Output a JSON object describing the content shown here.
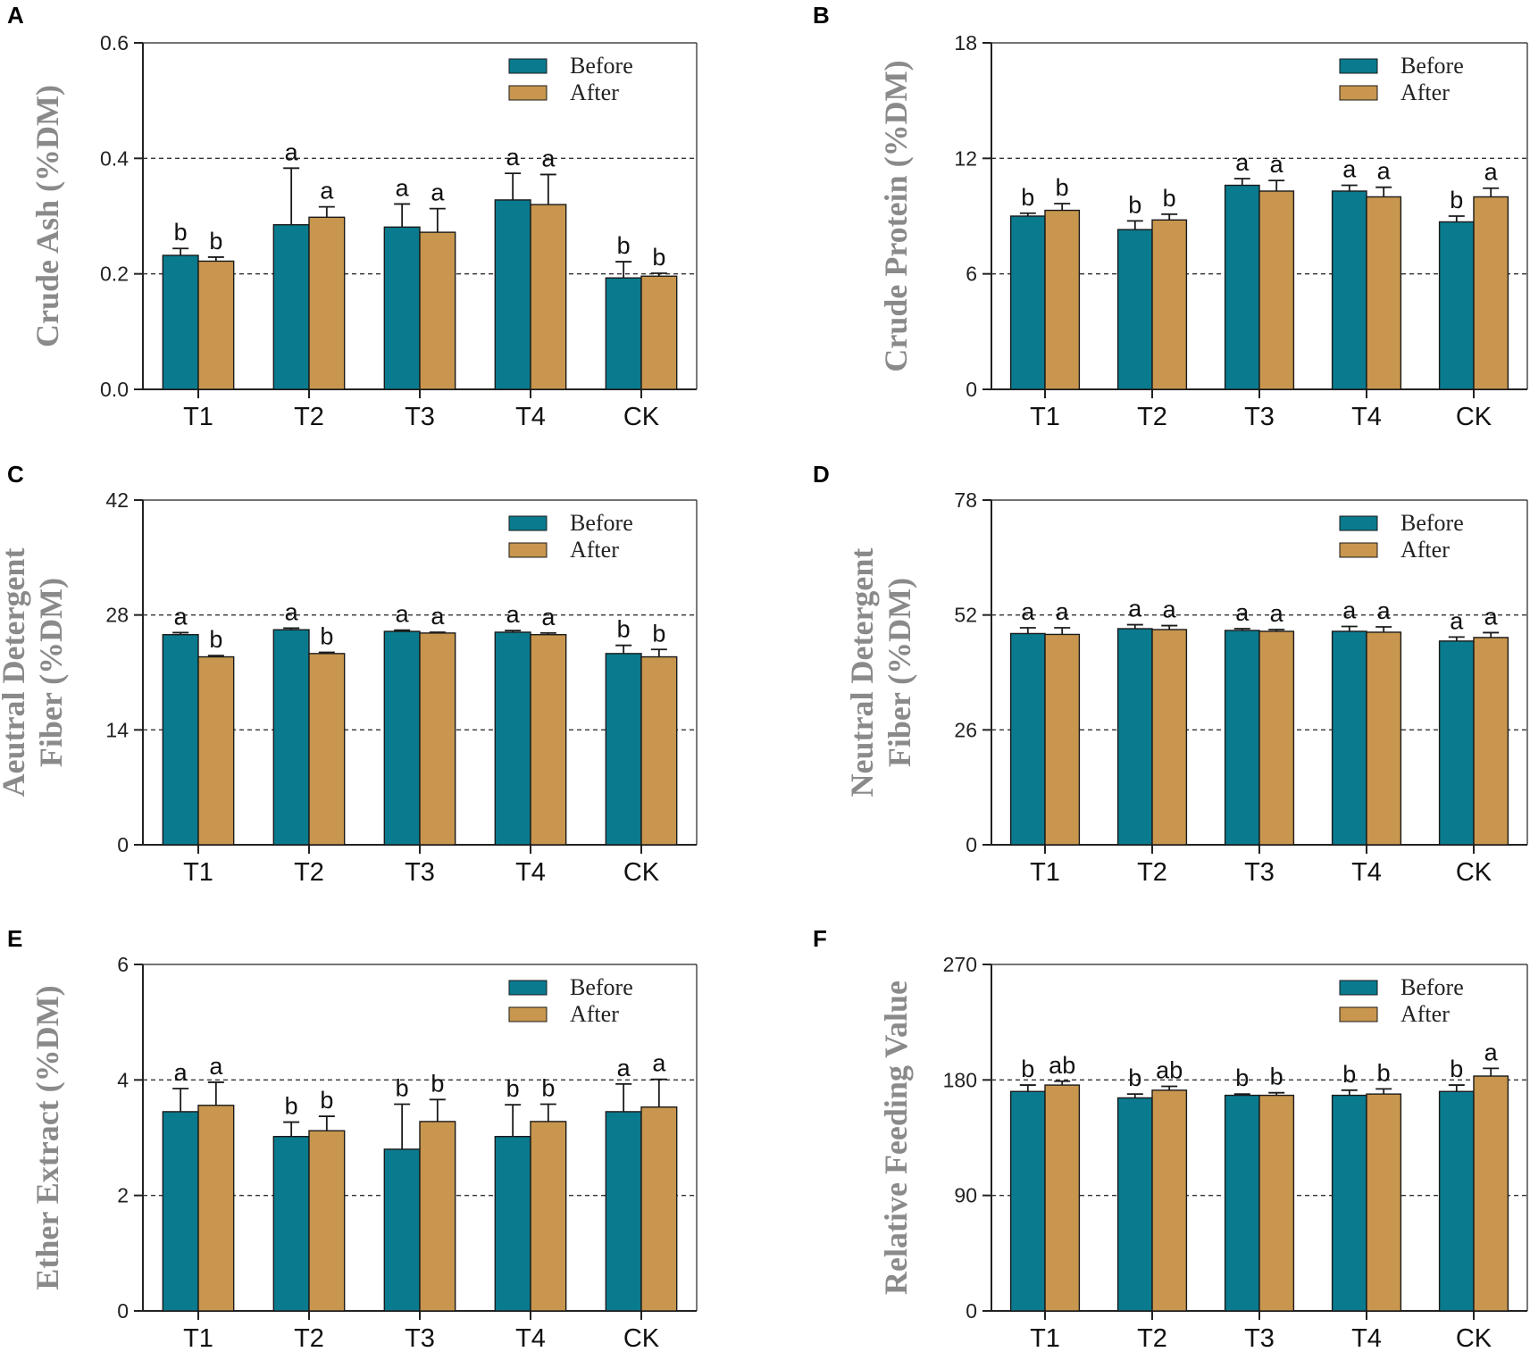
{
  "colors": {
    "before": "#0a7a8e",
    "after": "#c8964e",
    "axis": "#222222",
    "label": "#8a8a8a"
  },
  "legend": {
    "before": "Before",
    "after": "After"
  },
  "chart_data": [
    {
      "panel": "A",
      "type": "bar",
      "ylabel": "Crude Ash (%DM)",
      "ylabel_lines": [
        "Crude Ash (%DM)"
      ],
      "ylim": [
        0,
        0.6
      ],
      "yticks": [
        "0.0",
        "0.2",
        "0.4",
        "0.6"
      ],
      "ytick_values": [
        0,
        0.2,
        0.4,
        0.6
      ],
      "ref_lines": [
        0.2,
        0.4
      ],
      "categories": [
        "T1",
        "T2",
        "T3",
        "T4",
        "CK"
      ],
      "series": [
        {
          "name": "Before",
          "values": [
            0.232,
            0.285,
            0.281,
            0.328,
            0.193
          ],
          "errors": [
            0.012,
            0.098,
            0.04,
            0.046,
            0.028
          ],
          "labels": [
            "b",
            "a",
            "a",
            "a",
            "b"
          ]
        },
        {
          "name": "After",
          "values": [
            0.222,
            0.298,
            0.272,
            0.32,
            0.196
          ],
          "errors": [
            0.007,
            0.018,
            0.041,
            0.052,
            0.005
          ],
          "labels": [
            "b",
            "a",
            "a",
            "a",
            "b"
          ]
        }
      ]
    },
    {
      "panel": "B",
      "type": "bar",
      "ylabel": "Crude Protein (%DM)",
      "ylabel_lines": [
        "Crude Protein (%DM)"
      ],
      "ylim": [
        0,
        18
      ],
      "yticks": [
        "0",
        "6",
        "12",
        "18"
      ],
      "ytick_values": [
        0,
        6,
        12,
        18
      ],
      "ref_lines": [
        6,
        12
      ],
      "categories": [
        "T1",
        "T2",
        "T3",
        "T4",
        "CK"
      ],
      "series": [
        {
          "name": "Before",
          "values": [
            9.0,
            8.3,
            10.6,
            10.3,
            8.7
          ],
          "errors": [
            0.15,
            0.45,
            0.35,
            0.3,
            0.3
          ],
          "labels": [
            "b",
            "b",
            "a",
            "a",
            "b"
          ]
        },
        {
          "name": "After",
          "values": [
            9.3,
            8.8,
            10.3,
            10.0,
            10.0
          ],
          "errors": [
            0.35,
            0.3,
            0.55,
            0.5,
            0.45
          ],
          "labels": [
            "b",
            "b",
            "a",
            "a",
            "a"
          ]
        }
      ]
    },
    {
      "panel": "C",
      "type": "bar",
      "ylabel": "Aeutral Detergent Fiber (%DM)",
      "ylabel_lines": [
        "Aeutral Detergent",
        "Fiber (%DM)"
      ],
      "ylim": [
        0,
        42
      ],
      "yticks": [
        "0",
        "14",
        "28",
        "42"
      ],
      "ytick_values": [
        0,
        14,
        28,
        42
      ],
      "ref_lines": [
        14,
        28
      ],
      "categories": [
        "T1",
        "T2",
        "T3",
        "T4",
        "CK"
      ],
      "series": [
        {
          "name": "Before",
          "values": [
            25.6,
            26.2,
            26.0,
            25.9,
            23.3
          ],
          "errors": [
            0.25,
            0.2,
            0.15,
            0.2,
            1.0
          ],
          "labels": [
            "a",
            "a",
            "a",
            "a",
            "b"
          ]
        },
        {
          "name": "After",
          "values": [
            22.9,
            23.3,
            25.8,
            25.6,
            22.9
          ],
          "errors": [
            0.15,
            0.15,
            0.1,
            0.2,
            0.9
          ],
          "labels": [
            "b",
            "b",
            "a",
            "a",
            "b"
          ]
        }
      ]
    },
    {
      "panel": "D",
      "type": "bar",
      "ylabel": "Neutral Detergent Fiber (%DM)",
      "ylabel_lines": [
        "Neutral Detergent",
        "Fiber (%DM)"
      ],
      "ylim": [
        0,
        78
      ],
      "yticks": [
        "0",
        "26",
        "52",
        "78"
      ],
      "ytick_values": [
        0,
        26,
        52,
        78
      ],
      "ref_lines": [
        26,
        52
      ],
      "categories": [
        "T1",
        "T2",
        "T3",
        "T4",
        "CK"
      ],
      "series": [
        {
          "name": "Before",
          "values": [
            47.8,
            48.9,
            48.5,
            48.3,
            46.1
          ],
          "errors": [
            1.3,
            0.9,
            0.4,
            1.1,
            0.9
          ],
          "labels": [
            "a",
            "a",
            "a",
            "a",
            "a"
          ]
        },
        {
          "name": "After",
          "values": [
            47.6,
            48.7,
            48.3,
            48.1,
            46.9
          ],
          "errors": [
            1.5,
            0.9,
            0.4,
            1.2,
            1.1
          ],
          "labels": [
            "a",
            "a",
            "a",
            "a",
            "a"
          ]
        }
      ]
    },
    {
      "panel": "E",
      "type": "bar",
      "ylabel": "Ether Extract (%DM)",
      "ylabel_lines": [
        "Ether Extract (%DM)"
      ],
      "ylim": [
        0,
        6
      ],
      "yticks": [
        "0",
        "2",
        "4",
        "6"
      ],
      "ytick_values": [
        0,
        2,
        4,
        6
      ],
      "ref_lines": [
        2,
        4
      ],
      "categories": [
        "T1",
        "T2",
        "T3",
        "T4",
        "CK"
      ],
      "series": [
        {
          "name": "Before",
          "values": [
            3.45,
            3.02,
            2.8,
            3.02,
            3.45
          ],
          "errors": [
            0.4,
            0.25,
            0.78,
            0.55,
            0.48
          ],
          "labels": [
            "a",
            "b",
            "b",
            "b",
            "a"
          ]
        },
        {
          "name": "After",
          "values": [
            3.56,
            3.12,
            3.28,
            3.28,
            3.53
          ],
          "errors": [
            0.4,
            0.25,
            0.38,
            0.3,
            0.48
          ],
          "labels": [
            "a",
            "b",
            "b",
            "b",
            "a"
          ]
        }
      ]
    },
    {
      "panel": "F",
      "type": "bar",
      "ylabel": "Relative Feeding Value",
      "ylabel_lines": [
        "Relative Feeding Value"
      ],
      "ylim": [
        0,
        270
      ],
      "yticks": [
        "0",
        "90",
        "180",
        "270"
      ],
      "ytick_values": [
        0,
        90,
        180,
        270
      ],
      "ref_lines": [
        90,
        180
      ],
      "categories": [
        "T1",
        "T2",
        "T3",
        "T4",
        "CK"
      ],
      "series": [
        {
          "name": "Before",
          "values": [
            171,
            166,
            168,
            168,
            171
          ],
          "errors": [
            5,
            3,
            1,
            4,
            5
          ],
          "labels": [
            "b",
            "b",
            "b",
            "b",
            "b"
          ]
        },
        {
          "name": "After",
          "values": [
            176,
            172,
            168,
            169,
            183
          ],
          "errors": [
            3,
            3,
            2,
            4,
            6
          ],
          "labels": [
            "ab",
            "ab",
            "b",
            "b",
            "a"
          ]
        }
      ]
    }
  ]
}
